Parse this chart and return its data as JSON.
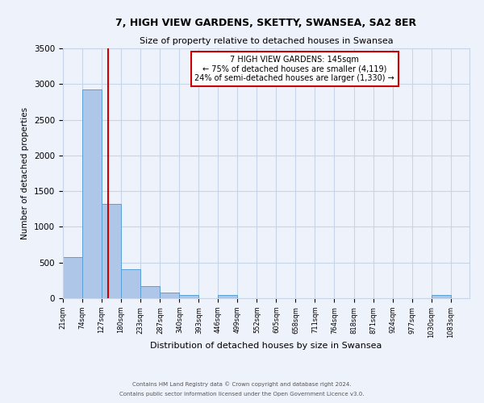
{
  "title": "7, HIGH VIEW GARDENS, SKETTY, SWANSEA, SA2 8ER",
  "subtitle": "Size of property relative to detached houses in Swansea",
  "xlabel": "Distribution of detached houses by size in Swansea",
  "ylabel": "Number of detached properties",
  "bin_labels": [
    "21sqm",
    "74sqm",
    "127sqm",
    "180sqm",
    "233sqm",
    "287sqm",
    "340sqm",
    "393sqm",
    "446sqm",
    "499sqm",
    "552sqm",
    "605sqm",
    "658sqm",
    "711sqm",
    "764sqm",
    "818sqm",
    "871sqm",
    "924sqm",
    "977sqm",
    "1030sqm",
    "1083sqm"
  ],
  "bar_heights": [
    580,
    2920,
    1320,
    410,
    165,
    75,
    45,
    0,
    40,
    0,
    0,
    0,
    0,
    0,
    0,
    0,
    0,
    0,
    0,
    40,
    0
  ],
  "bar_color": "#aec6e8",
  "bar_edge_color": "#5a9fd4",
  "red_line_color": "#cc0000",
  "annotation_title": "7 HIGH VIEW GARDENS: 145sqm",
  "annotation_line1": "← 75% of detached houses are smaller (4,119)",
  "annotation_line2": "24% of semi-detached houses are larger (1,330) →",
  "annotation_box_color": "#ffffff",
  "annotation_box_edge_color": "#cc0000",
  "ylim": [
    0,
    3500
  ],
  "yticks": [
    0,
    500,
    1000,
    1500,
    2000,
    2500,
    3000,
    3500
  ],
  "footer1": "Contains HM Land Registry data © Crown copyright and database right 2024.",
  "footer2": "Contains public sector information licensed under the Open Government Licence v3.0.",
  "bg_color": "#eef2fb",
  "grid_color": "#c8d4e8"
}
